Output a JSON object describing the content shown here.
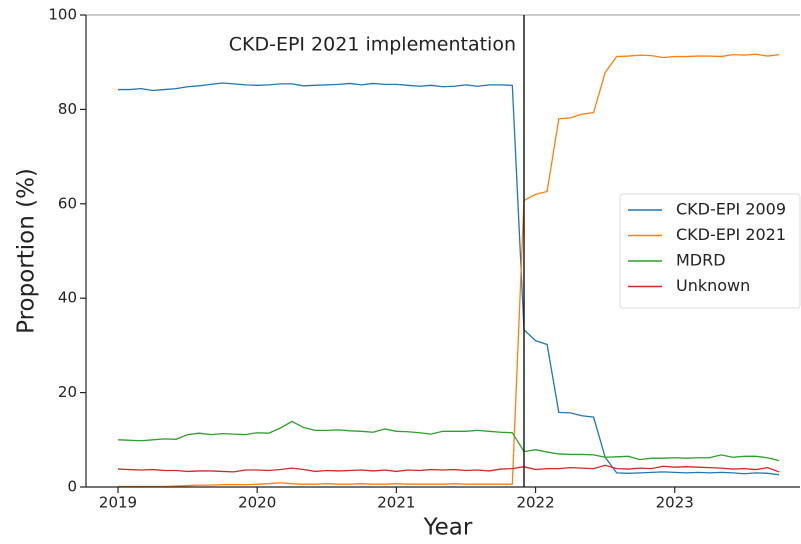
{
  "chart_data": {
    "type": "line",
    "xlabel": "Year",
    "ylabel": "Proportion (%)",
    "annotation": "CKD-EPI 2021 implementation",
    "vline": 2021.917,
    "x": [
      2019,
      2019.083,
      2019.167,
      2019.25,
      2019.333,
      2019.417,
      2019.5,
      2019.583,
      2019.667,
      2019.75,
      2019.833,
      2019.917,
      2020,
      2020.083,
      2020.167,
      2020.25,
      2020.333,
      2020.417,
      2020.5,
      2020.583,
      2020.667,
      2020.75,
      2020.833,
      2020.917,
      2021,
      2021.083,
      2021.167,
      2021.25,
      2021.333,
      2021.417,
      2021.5,
      2021.583,
      2021.667,
      2021.75,
      2021.833,
      2021.917,
      2022,
      2022.083,
      2022.167,
      2022.25,
      2022.333,
      2022.417,
      2022.5,
      2022.583,
      2022.667,
      2022.75,
      2022.833,
      2022.917,
      2023,
      2023.083,
      2023.167,
      2023.25,
      2023.333,
      2023.417,
      2023.5,
      2023.583,
      2023.667,
      2023.75
    ],
    "series": [
      {
        "name": "CKD-EPI 2009",
        "color": "#1f77b4",
        "values": [
          84.2,
          84.2,
          84.4,
          84,
          84.2,
          84.4,
          84.8,
          85,
          85.3,
          85.6,
          85.4,
          85.2,
          85.1,
          85.2,
          85.4,
          85.4,
          85,
          85.1,
          85.2,
          85.3,
          85.5,
          85.2,
          85.5,
          85.3,
          85.3,
          85.1,
          84.9,
          85.1,
          84.8,
          84.9,
          85.2,
          84.9,
          85.2,
          85.2,
          85.1,
          33.3,
          31,
          30.2,
          15.8,
          15.7,
          15.1,
          14.8,
          6.3,
          3,
          2.9,
          3,
          3.1,
          3.2,
          3.1,
          3,
          3.1,
          3,
          3.1,
          3,
          2.8,
          3,
          2.9,
          2.6
        ]
      },
      {
        "name": "CKD-EPI 2021",
        "color": "#ff7f0e",
        "values": [
          0.1,
          0.1,
          0.1,
          0.1,
          0.1,
          0.2,
          0.3,
          0.4,
          0.4,
          0.5,
          0.5,
          0.5,
          0.6,
          0.7,
          0.9,
          0.7,
          0.6,
          0.6,
          0.7,
          0.6,
          0.6,
          0.7,
          0.6,
          0.6,
          0.7,
          0.6,
          0.6,
          0.6,
          0.6,
          0.7,
          0.6,
          0.6,
          0.6,
          0.6,
          0.6,
          60.7,
          62,
          62.6,
          78,
          78.2,
          79,
          79.3,
          87.8,
          91.2,
          91.3,
          91.5,
          91.4,
          91,
          91.2,
          91.2,
          91.3,
          91.3,
          91.2,
          91.6,
          91.5,
          91.7,
          91.3,
          91.6
        ]
      },
      {
        "name": "MDRD",
        "color": "#2ca02c",
        "values": [
          10,
          9.9,
          9.8,
          10,
          10.2,
          10.1,
          11.1,
          11.4,
          11.1,
          11.3,
          11.2,
          11.1,
          11.5,
          11.4,
          12.5,
          13.9,
          12.6,
          12,
          12,
          12.1,
          11.9,
          11.8,
          11.6,
          12.3,
          11.8,
          11.7,
          11.5,
          11.2,
          11.8,
          11.8,
          11.8,
          12,
          11.8,
          11.6,
          11.5,
          7.5,
          7.9,
          7.4,
          7,
          6.9,
          6.9,
          6.8,
          6.3,
          6.4,
          6.5,
          5.8,
          6.1,
          6.1,
          6.2,
          6.1,
          6.2,
          6.2,
          6.8,
          6.3,
          6.5,
          6.5,
          6.2,
          5.6
        ]
      },
      {
        "name": "Unknown",
        "color": "#d62728",
        "values": [
          3.8,
          3.7,
          3.6,
          3.7,
          3.5,
          3.5,
          3.3,
          3.4,
          3.4,
          3.3,
          3.2,
          3.6,
          3.6,
          3.5,
          3.7,
          4,
          3.7,
          3.3,
          3.5,
          3.4,
          3.5,
          3.6,
          3.4,
          3.6,
          3.3,
          3.6,
          3.5,
          3.7,
          3.6,
          3.7,
          3.5,
          3.6,
          3.4,
          3.8,
          3.9,
          4.3,
          3.7,
          3.9,
          3.9,
          4.1,
          4,
          3.9,
          4.6,
          3.9,
          3.8,
          4,
          3.9,
          4.4,
          4.2,
          4.3,
          4.2,
          4.1,
          4,
          3.8,
          3.9,
          3.7,
          4.1,
          3.2
        ]
      }
    ],
    "xlim": [
      2018.77,
      2023.9
    ],
    "xticks": [
      2019,
      2020,
      2021,
      2022,
      2023
    ],
    "ylim": [
      0,
      100
    ],
    "yticks": [
      0,
      20,
      40,
      60,
      80,
      100
    ],
    "legend": "center right"
  }
}
